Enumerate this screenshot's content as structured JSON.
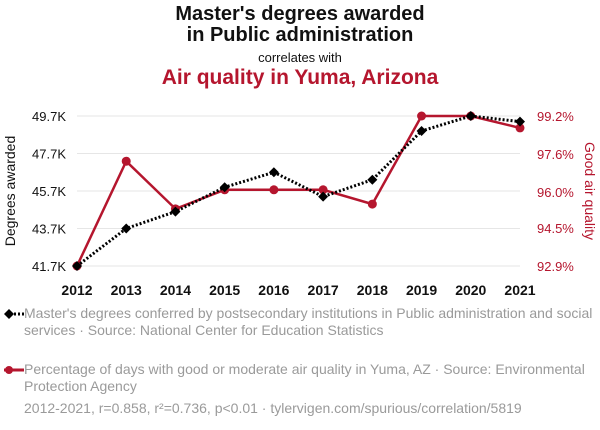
{
  "title_line1": "Master's degrees awarded",
  "title_line2": "in Public administration",
  "correlates_text": "correlates with",
  "subtitle": "Air quality in Yuma, Arizona",
  "colors": {
    "series1": "#000000",
    "series2": "#B5162E",
    "grid": "#e6e6e6",
    "muted": "#9a9a9a"
  },
  "chart_data": {
    "type": "line",
    "x": [
      2012,
      2013,
      2014,
      2015,
      2016,
      2017,
      2018,
      2019,
      2020,
      2021
    ],
    "xticks": [
      "2012",
      "2013",
      "2014",
      "2015",
      "2016",
      "2017",
      "2018",
      "2019",
      "2020",
      "2021"
    ],
    "left_axis": {
      "label": "Degrees awarded",
      "ylim": [
        41700,
        49700
      ],
      "ticks": [
        41700,
        43700,
        45700,
        47700,
        49700
      ],
      "tick_labels": [
        "41.7K",
        "43.7K",
        "45.7K",
        "47.7K",
        "49.7K"
      ]
    },
    "right_axis": {
      "label": "Good air quality",
      "ylim": [
        92.9,
        99.2
      ],
      "ticks": [
        92.9,
        94.5,
        96.0,
        97.6,
        99.2
      ],
      "tick_labels": [
        "92.9%",
        "94.5%",
        "96.0%",
        "97.6%",
        "99.2%"
      ]
    },
    "series": [
      {
        "name": "Master's degrees conferred by postsecondary institutions in Public administration and social services · Source: National Center for Education Statistics",
        "axis": "left",
        "style": "dotted",
        "marker": "diamond",
        "color": "#000000",
        "values": [
          41700,
          43700,
          44600,
          45900,
          46700,
          45400,
          46300,
          48900,
          49700,
          49400
        ]
      },
      {
        "name": "Percentage of days with good or moderate air quality in Yuma, AZ · Source: Environmental Protection Agency",
        "axis": "right",
        "style": "solid",
        "marker": "circle",
        "color": "#B5162E",
        "values": [
          92.9,
          97.3,
          95.3,
          96.1,
          96.1,
          96.1,
          95.5,
          99.2,
          99.2,
          98.7
        ]
      }
    ],
    "grid": "horizontal"
  },
  "footer": "2012-2021, r=0.858, r²=0.736, p<0.01 · tylervigen.com/spurious/correlation/5819"
}
